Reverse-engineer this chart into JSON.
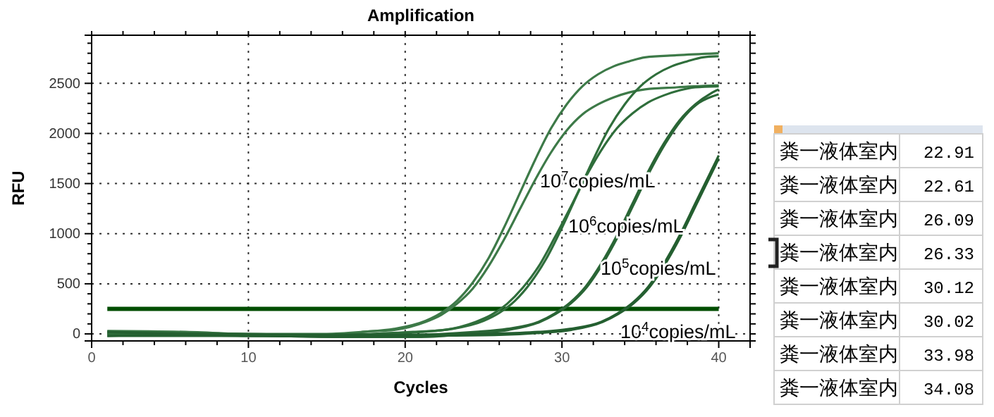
{
  "chart_data": [
    {
      "type": "line",
      "title": "Amplification",
      "xlabel": "Cycles",
      "ylabel": "RFU",
      "xlim": [
        0,
        42
      ],
      "ylim": [
        -70,
        2980
      ],
      "xticks": [
        0,
        {
          "value": 2,
          "label": null
        },
        {
          "value": 4,
          "label": null
        },
        {
          "value": 6,
          "label": null
        },
        {
          "value": 8,
          "label": null
        },
        10,
        {
          "value": 12,
          "label": null
        },
        {
          "value": 14,
          "label": null
        },
        {
          "value": 16,
          "label": null
        },
        {
          "value": 18,
          "label": null
        },
        20,
        {
          "value": 22,
          "label": null
        },
        {
          "value": 24,
          "label": null
        },
        {
          "value": 26,
          "label": null
        },
        {
          "value": 28,
          "label": null
        },
        30,
        {
          "value": 32,
          "label": null
        },
        {
          "value": 34,
          "label": null
        },
        {
          "value": 36,
          "label": null
        },
        {
          "value": 38,
          "label": null
        },
        40
      ],
      "yticks": [
        0,
        {
          "value": 100,
          "label": null
        },
        {
          "value": 200,
          "label": null
        },
        {
          "value": 300,
          "label": null
        },
        {
          "value": 400,
          "label": null
        },
        500,
        {
          "value": 600,
          "label": null
        },
        {
          "value": 700,
          "label": null
        },
        {
          "value": 800,
          "label": null
        },
        {
          "value": 900,
          "label": null
        },
        1000,
        {
          "value": 1100,
          "label": null
        },
        {
          "value": 1200,
          "label": null
        },
        {
          "value": 1300,
          "label": null
        },
        {
          "value": 1400,
          "label": null
        },
        1500,
        {
          "value": 1600,
          "label": null
        },
        {
          "value": 1700,
          "label": null
        },
        {
          "value": 1800,
          "label": null
        },
        {
          "value": 1900,
          "label": null
        },
        2000,
        {
          "value": 2100,
          "label": null
        },
        {
          "value": 2200,
          "label": null
        },
        {
          "value": 2300,
          "label": null
        },
        {
          "value": 2400,
          "label": null
        },
        2500,
        {
          "value": 2600,
          "label": null
        },
        {
          "value": 2700,
          "label": null
        },
        {
          "value": 2800,
          "label": null
        },
        {
          "value": 2900,
          "label": null
        }
      ],
      "grid": true,
      "marker": "none",
      "line_style": "solid",
      "series": [
        {
          "color": "#3d7a48",
          "x": [
            1,
            5,
            10,
            15,
            17.3,
            19.3,
            21.3,
            22.3,
            23.3,
            24.3,
            25.3,
            26.3,
            27.3,
            28.3,
            29.3,
            30.3,
            31.3,
            32.3,
            33.3,
            34.3,
            35.3,
            37.3,
            40
          ],
          "values": [
            20,
            10,
            0,
            0,
            20,
            50,
            130,
            210,
            330,
            510,
            750,
            1060,
            1400,
            1740,
            2050,
            2290,
            2470,
            2590,
            2670,
            2720,
            2760,
            2780,
            2800
          ]
        },
        {
          "color": "#3d7a48",
          "x": [
            1,
            6,
            11,
            16,
            17.3,
            19.3,
            21.3,
            22.3,
            23.3,
            24.3,
            25.3,
            26.3,
            27.3,
            28.3,
            29.3,
            30.3,
            31.3,
            32.3,
            33.3,
            34.3,
            35.3,
            37.3,
            40
          ],
          "values": [
            30,
            20,
            -10,
            -20,
            20,
            40,
            120,
            190,
            300,
            450,
            670,
            940,
            1240,
            1540,
            1810,
            2030,
            2190,
            2290,
            2360,
            2410,
            2440,
            2460,
            2480
          ]
        },
        {
          "color": "#2f6e3b",
          "x": [
            1,
            5,
            10,
            15,
            20.5,
            22.5,
            24.5,
            25.5,
            26.5,
            27.5,
            28.5,
            29.5,
            30.5,
            31.5,
            32.5,
            33.5,
            34.5,
            35.5,
            36.5,
            37.5,
            38.5,
            40
          ],
          "values": [
            10,
            0,
            -10,
            -10,
            20,
            40,
            120,
            190,
            300,
            460,
            670,
            950,
            1250,
            1560,
            1830,
            2050,
            2200,
            2310,
            2380,
            2430,
            2460,
            2470
          ]
        },
        {
          "color": "#2f6e3b",
          "x": [
            1,
            6,
            11,
            16,
            21,
            23,
            25,
            26,
            27,
            28,
            29,
            30,
            31,
            32,
            33,
            34,
            35,
            36,
            37,
            38,
            39,
            40
          ],
          "values": [
            0,
            -10,
            -20,
            -20,
            20,
            50,
            130,
            210,
            330,
            510,
            750,
            1060,
            1400,
            1740,
            2050,
            2290,
            2470,
            2590,
            2670,
            2720,
            2760,
            2770
          ]
        },
        {
          "color": "#2a6636",
          "x": [
            1,
            5,
            10,
            15,
            20,
            24.5,
            26.5,
            28.5,
            29.5,
            30.5,
            31.5,
            32.5,
            33.5,
            34.5,
            35.5,
            36.5,
            37.5,
            38.5,
            39.5,
            40
          ],
          "values": [
            20,
            10,
            0,
            -10,
            -10,
            20,
            50,
            120,
            200,
            310,
            470,
            700,
            980,
            1300,
            1620,
            1900,
            2130,
            2290,
            2400,
            2440
          ]
        },
        {
          "color": "#2a6636",
          "x": [
            1,
            6,
            11,
            16,
            21,
            24.6,
            26.6,
            28.6,
            29.6,
            30.6,
            31.6,
            32.6,
            33.6,
            34.6,
            35.6,
            36.6,
            37.6,
            38.6,
            39.6,
            40
          ],
          "values": [
            -20,
            -20,
            -20,
            -30,
            -30,
            10,
            40,
            120,
            200,
            310,
            470,
            700,
            980,
            1300,
            1620,
            1900,
            2130,
            2290,
            2370,
            2390
          ]
        },
        {
          "color": "#245f30",
          "x": [
            1,
            5,
            10,
            15,
            20,
            25,
            28.5,
            30.5,
            32.5,
            33.5,
            34.5,
            35.5,
            36.5,
            37.5,
            38.5,
            39.5,
            40
          ],
          "values": [
            20,
            0,
            -10,
            -10,
            -10,
            0,
            20,
            50,
            120,
            200,
            310,
            470,
            700,
            980,
            1300,
            1620,
            1780
          ]
        },
        {
          "color": "#245f30",
          "x": [
            1,
            6,
            11,
            16,
            21,
            26,
            28.6,
            30.6,
            32.6,
            33.6,
            34.6,
            35.6,
            36.6,
            37.6,
            38.6,
            39.6,
            40
          ],
          "values": [
            -20,
            -10,
            -20,
            -30,
            -20,
            -10,
            10,
            40,
            120,
            200,
            310,
            470,
            700,
            980,
            1300,
            1620,
            1750
          ]
        }
      ],
      "ref_lines": [
        {
          "axis": "y",
          "value": 250,
          "color": "#004d00"
        }
      ],
      "annotations": [
        "10$^{7}$copies/mL",
        "10$^{6}$copies/mL",
        "10$^{5}$copies/mL",
        "10$^{4}$copies/mL"
      ]
    },
    {
      "type": "other",
      "categories": [
        "粪一液体室内",
        "粪一液体室内",
        "粪一液体室内",
        "粪一液体室内",
        "粪一液体室内",
        "粪一液体室内",
        "粪一液体室内",
        "粪一液体室内"
      ],
      "values": [
        22.91,
        22.61,
        26.09,
        26.33,
        30.12,
        30.02,
        33.98,
        34.08
      ],
      "data_labels": true
    }
  ]
}
